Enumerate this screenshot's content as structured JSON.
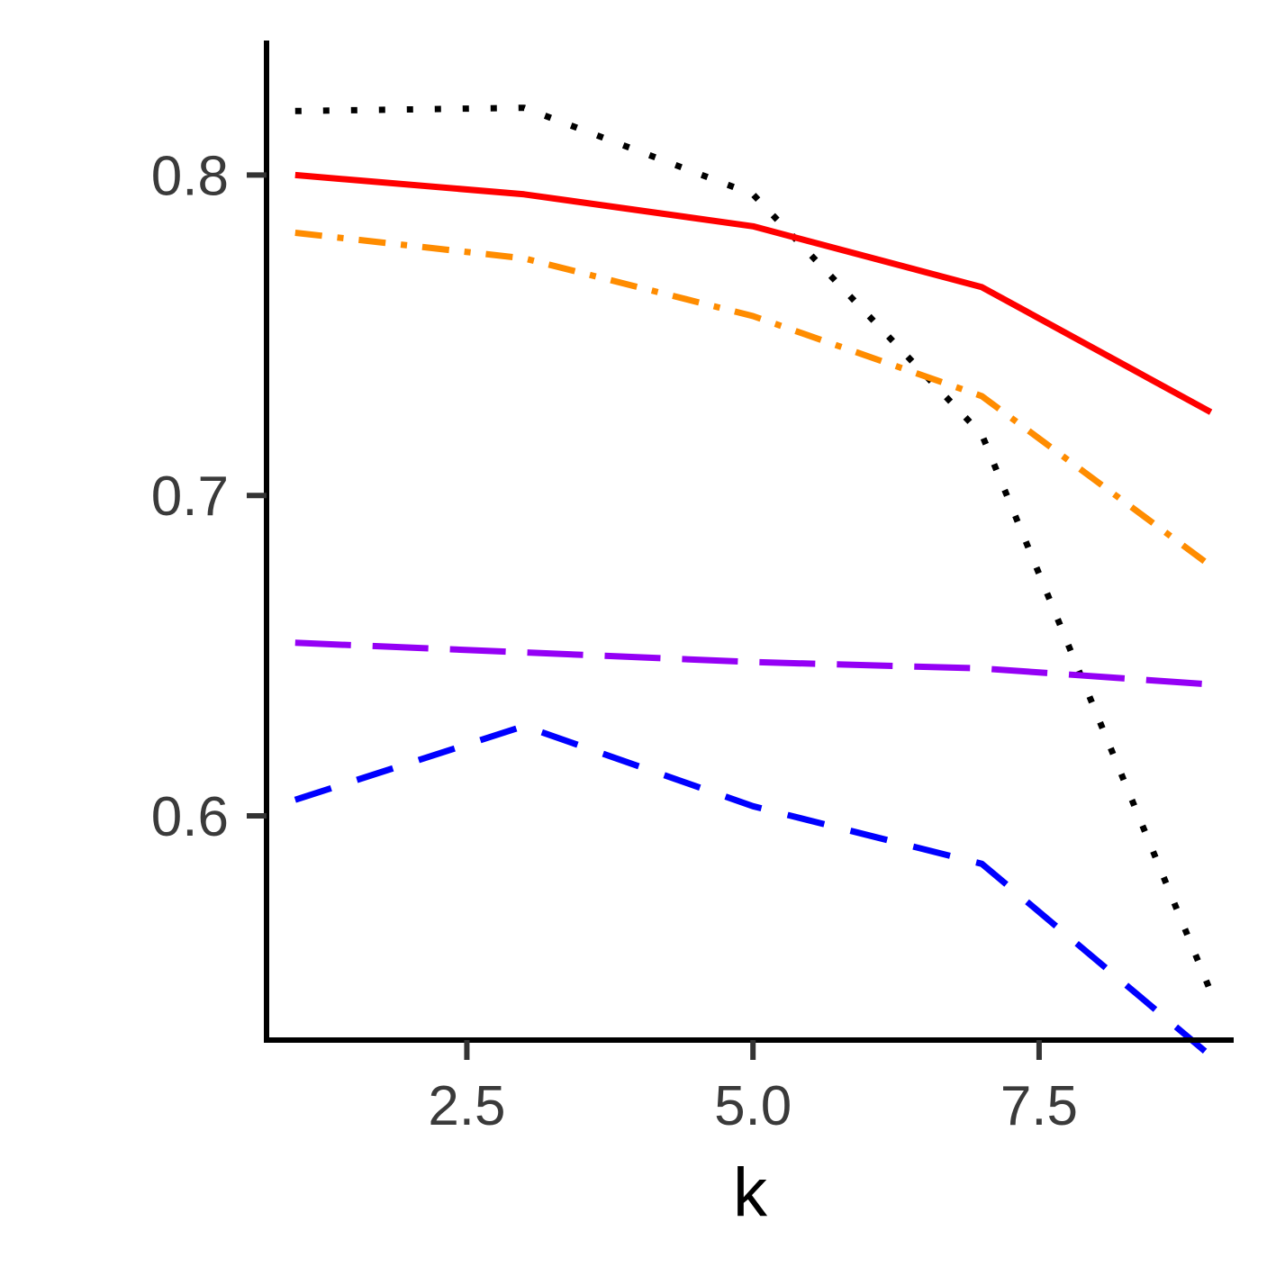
{
  "chart_data": {
    "type": "line",
    "xlabel": "k",
    "ylabel": "",
    "xlim": [
      0.75,
      9.2
    ],
    "ylim": [
      0.53,
      0.842
    ],
    "x_ticks": [
      2.5,
      5.0,
      7.5
    ],
    "x_tick_labels": [
      "2.5",
      "5.0",
      "7.5"
    ],
    "y_ticks": [
      0.6,
      0.7,
      0.8
    ],
    "y_tick_labels": [
      "0.6",
      "0.7",
      "0.8"
    ],
    "x": [
      1,
      3,
      5,
      7,
      9
    ],
    "grid": false,
    "legend": "none",
    "series": [
      {
        "color": "#000000",
        "dash": "dotted",
        "values": [
          0.82,
          0.821,
          0.794,
          0.719,
          0.545
        ]
      },
      {
        "color": "#ff0000",
        "dash": "solid",
        "values": [
          0.8,
          0.794,
          0.784,
          0.765,
          0.726
        ]
      },
      {
        "color": "#ff8c00",
        "dash": "dotdash",
        "values": [
          0.782,
          0.774,
          0.756,
          0.731,
          0.678
        ]
      },
      {
        "color": "#9400f5",
        "dash": "longdash",
        "values": [
          0.654,
          0.651,
          0.648,
          0.646,
          0.641
        ]
      },
      {
        "color": "#0000ff",
        "dash": "dashed",
        "values": [
          0.605,
          0.628,
          0.603,
          0.585,
          0.525
        ]
      }
    ]
  }
}
